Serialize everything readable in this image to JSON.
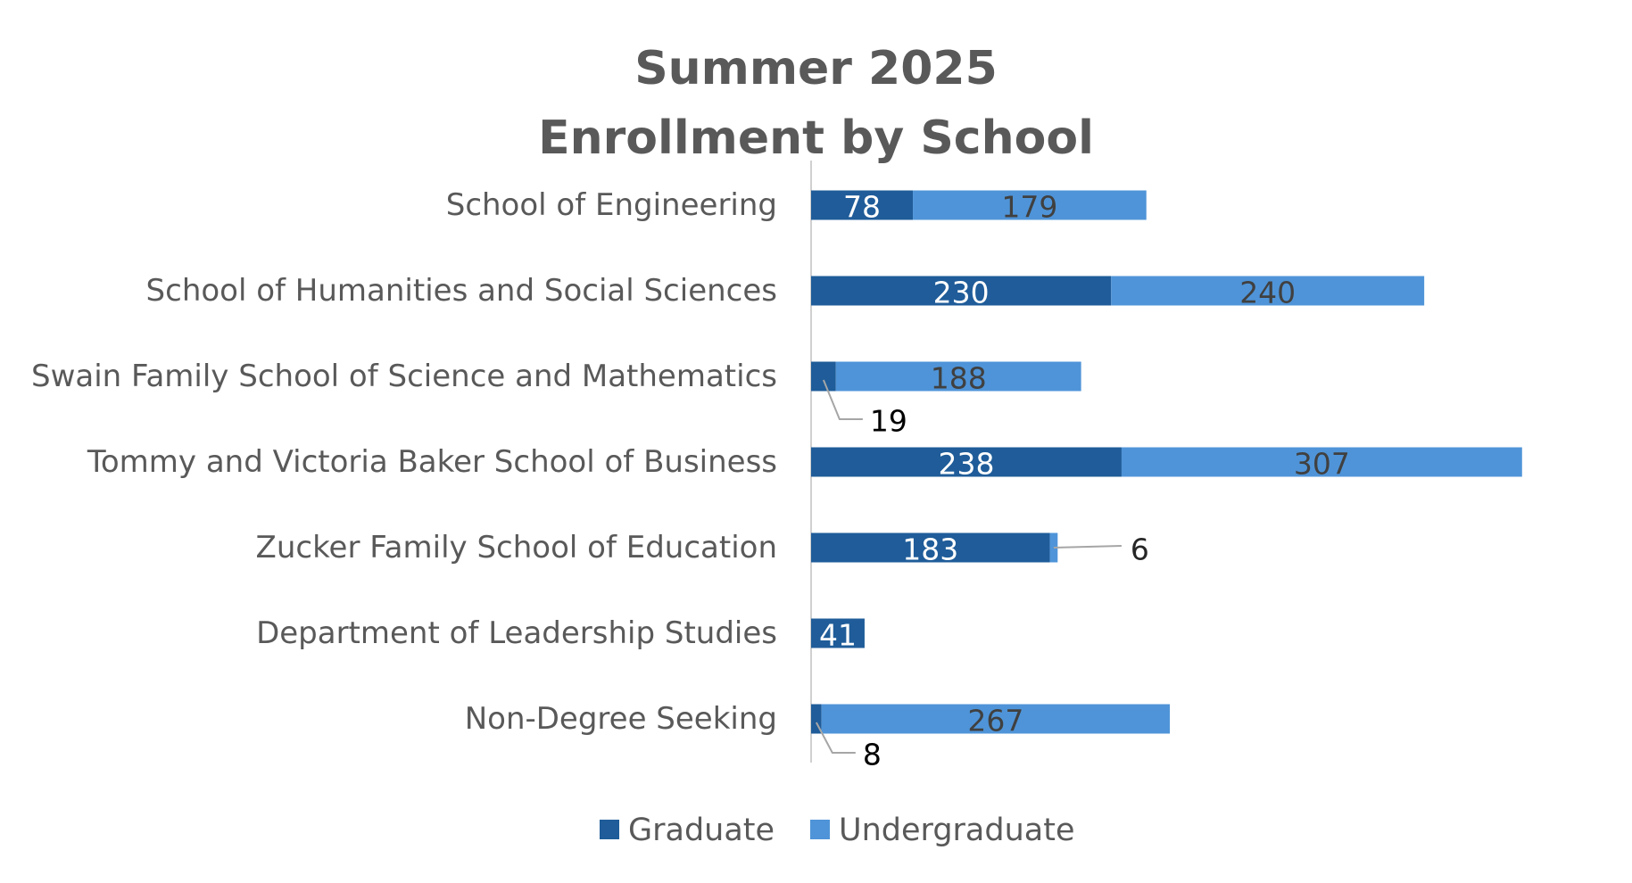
{
  "chart_data": {
    "type": "bar",
    "orientation": "horizontal",
    "stacked": true,
    "title": [
      "Summer 2025",
      "Enrollment by School"
    ],
    "categories": [
      "School of Engineering",
      "School of Humanities and Social Sciences",
      "Swain Family School of Science and Mathematics",
      "Tommy and Victoria Baker School of Business",
      "Zucker Family School of Education",
      "Department of Leadership Studies",
      "Non-Degree Seeking"
    ],
    "series": [
      {
        "name": "Graduate",
        "color": "#1f5c99",
        "values": [
          78,
          230,
          19,
          238,
          183,
          41,
          8
        ]
      },
      {
        "name": "Undergraduate",
        "color": "#4f94d8",
        "values": [
          179,
          240,
          188,
          307,
          6,
          0,
          267
        ]
      }
    ],
    "xlim": [
      0,
      550
    ],
    "grid": false,
    "legend": "bottom",
    "data_labels": true
  }
}
